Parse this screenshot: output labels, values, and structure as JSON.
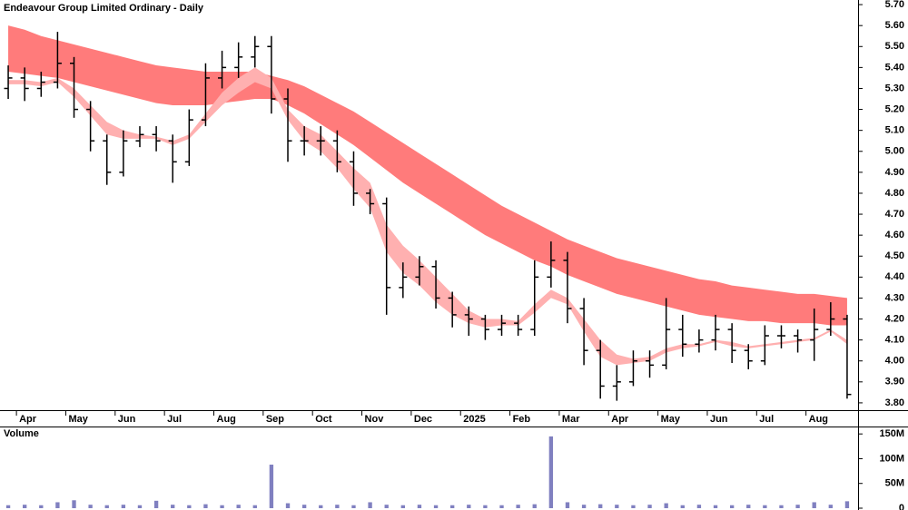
{
  "chart_data": [
    {
      "type": "ohlc",
      "title": "Endeavour Group Limited Ordinary - Daily",
      "color": "#000000",
      "categories": [
        null,
        "Apr",
        null,
        null,
        "May",
        null,
        null,
        "Jun",
        null,
        null,
        "Jul",
        null,
        null,
        "Aug",
        null,
        null,
        "Sep",
        null,
        null,
        "Oct",
        null,
        null,
        "Nov",
        null,
        null,
        "Dec",
        null,
        null,
        "2025",
        null,
        null,
        "Feb",
        null,
        null,
        "Mar",
        null,
        null,
        "Apr",
        null,
        null,
        "May",
        null,
        null,
        "Jun",
        null,
        null,
        "Jul",
        null,
        null,
        "Aug",
        null,
        null
      ],
      "open": [
        5.3,
        5.35,
        5.3,
        5.33,
        5.42,
        5.2,
        5.05,
        4.9,
        5.05,
        5.08,
        5.05,
        4.95,
        5.15,
        5.35,
        5.4,
        5.45,
        5.5,
        5.25,
        5.05,
        5.05,
        5.05,
        4.95,
        4.8,
        4.75,
        4.35,
        4.4,
        4.45,
        4.3,
        4.22,
        4.2,
        4.15,
        4.18,
        4.15,
        4.4,
        4.48,
        4.25,
        4.05,
        3.88,
        3.9,
        4.0,
        3.98,
        4.15,
        4.08,
        4.1,
        4.15,
        4.05,
        4.0,
        4.12,
        4.12,
        4.1,
        4.15,
        4.2
      ],
      "high": [
        5.41,
        5.4,
        5.38,
        5.57,
        5.45,
        5.24,
        5.08,
        5.1,
        5.12,
        5.12,
        5.08,
        5.2,
        5.42,
        5.48,
        5.52,
        5.55,
        5.55,
        5.3,
        5.12,
        5.12,
        5.1,
        5.0,
        4.82,
        4.78,
        4.47,
        4.5,
        4.48,
        4.33,
        4.26,
        4.22,
        4.22,
        4.22,
        4.48,
        4.57,
        4.52,
        4.3,
        4.1,
        3.98,
        4.05,
        4.05,
        4.3,
        4.22,
        4.15,
        4.22,
        4.18,
        4.08,
        4.17,
        4.17,
        4.15,
        4.25,
        4.28,
        4.22
      ],
      "low": [
        5.25,
        5.24,
        5.26,
        5.3,
        5.16,
        5.0,
        4.84,
        4.88,
        5.02,
        5.0,
        4.85,
        4.93,
        5.12,
        5.3,
        5.35,
        5.4,
        5.18,
        4.95,
        4.98,
        4.98,
        4.9,
        4.74,
        4.7,
        4.22,
        4.3,
        4.36,
        4.25,
        4.16,
        4.12,
        4.1,
        4.12,
        4.12,
        4.12,
        4.35,
        4.18,
        3.98,
        3.82,
        3.81,
        3.88,
        3.92,
        3.96,
        4.02,
        4.04,
        4.05,
        3.99,
        3.96,
        3.98,
        4.06,
        4.04,
        4.0,
        4.12,
        3.82
      ],
      "close": [
        5.35,
        5.3,
        5.33,
        5.42,
        5.2,
        5.05,
        4.9,
        5.05,
        5.08,
        5.05,
        4.95,
        5.15,
        5.35,
        5.4,
        5.45,
        5.5,
        5.25,
        5.05,
        5.05,
        5.05,
        4.95,
        4.8,
        4.75,
        4.35,
        4.4,
        4.45,
        4.3,
        4.22,
        4.2,
        4.15,
        4.18,
        4.15,
        4.4,
        4.48,
        4.25,
        4.05,
        3.88,
        3.9,
        4.0,
        3.98,
        4.15,
        4.08,
        4.1,
        4.15,
        4.05,
        4.0,
        4.12,
        4.12,
        4.1,
        4.15,
        4.2,
        3.84
      ],
      "bands": [
        {
          "color": "#ff7b7b",
          "upper": [
            5.6,
            5.58,
            5.55,
            5.53,
            5.51,
            5.49,
            5.47,
            5.45,
            5.43,
            5.41,
            5.4,
            5.39,
            5.38,
            5.38,
            5.38,
            5.38,
            5.36,
            5.34,
            5.31,
            5.27,
            5.23,
            5.19,
            5.14,
            5.09,
            5.04,
            4.99,
            4.94,
            4.89,
            4.84,
            4.79,
            4.74,
            4.7,
            4.66,
            4.62,
            4.58,
            4.55,
            4.52,
            4.49,
            4.47,
            4.45,
            4.43,
            4.41,
            4.39,
            4.38,
            4.36,
            4.35,
            4.34,
            4.33,
            4.32,
            4.32,
            4.31,
            4.3
          ],
          "lower": [
            5.38,
            5.37,
            5.36,
            5.35,
            5.33,
            5.31,
            5.29,
            5.27,
            5.25,
            5.23,
            5.22,
            5.22,
            5.22,
            5.23,
            5.24,
            5.25,
            5.25,
            5.22,
            5.18,
            5.13,
            5.08,
            5.03,
            4.97,
            4.91,
            4.85,
            4.8,
            4.75,
            4.7,
            4.65,
            4.6,
            4.56,
            4.52,
            4.48,
            4.45,
            4.41,
            4.38,
            4.35,
            4.32,
            4.3,
            4.28,
            4.26,
            4.24,
            4.22,
            4.21,
            4.2,
            4.19,
            4.19,
            4.18,
            4.18,
            4.18,
            4.17,
            4.17
          ]
        },
        {
          "color": "#ffb0b0",
          "upper": [
            5.34,
            5.34,
            5.33,
            5.35,
            5.3,
            5.22,
            5.14,
            5.1,
            5.08,
            5.07,
            5.05,
            5.08,
            5.18,
            5.28,
            5.35,
            5.4,
            5.35,
            5.2,
            5.12,
            5.08,
            5.0,
            4.92,
            4.85,
            4.65,
            4.55,
            4.48,
            4.4,
            4.32,
            4.24,
            4.2,
            4.2,
            4.19,
            4.27,
            4.34,
            4.3,
            4.2,
            4.1,
            4.03,
            4.01,
            4.02,
            4.06,
            4.08,
            4.08,
            4.1,
            4.09,
            4.07,
            4.08,
            4.09,
            4.1,
            4.11,
            4.15,
            4.1
          ],
          "lower": [
            5.32,
            5.32,
            5.31,
            5.33,
            5.26,
            5.17,
            5.08,
            5.06,
            5.06,
            5.06,
            5.03,
            5.06,
            5.14,
            5.22,
            5.28,
            5.33,
            5.3,
            5.15,
            5.05,
            5.0,
            4.92,
            4.82,
            4.73,
            4.52,
            4.42,
            4.36,
            4.28,
            4.22,
            4.18,
            4.16,
            4.17,
            4.17,
            4.23,
            4.3,
            4.27,
            4.14,
            4.02,
            3.98,
            3.99,
            4.0,
            4.04,
            4.06,
            4.07,
            4.09,
            4.07,
            4.06,
            4.07,
            4.08,
            4.09,
            4.1,
            4.14,
            4.08
          ]
        }
      ],
      "ylim": [
        3.765,
        5.722
      ],
      "yticks": [
        {
          "value": 3.8,
          "label": "3.80"
        },
        {
          "value": 3.9,
          "label": "3.90"
        },
        {
          "value": 4.0,
          "label": "4.00"
        },
        {
          "value": 4.1,
          "label": "4.10"
        },
        {
          "value": 4.2,
          "label": "4.20"
        },
        {
          "value": 4.3,
          "label": "4.30"
        },
        {
          "value": 4.4,
          "label": "4.40"
        },
        {
          "value": 4.5,
          "label": "4.50"
        },
        {
          "value": 4.6,
          "label": "4.60"
        },
        {
          "value": 4.7,
          "label": "4.70"
        },
        {
          "value": 4.8,
          "label": "4.80"
        },
        {
          "value": 4.9,
          "label": "4.90"
        },
        {
          "value": 5.0,
          "label": "5.00"
        },
        {
          "value": 5.1,
          "label": "5.10"
        },
        {
          "value": 5.2,
          "label": "5.20"
        },
        {
          "value": 5.3,
          "label": "5.30"
        },
        {
          "value": 5.4,
          "label": "5.40"
        },
        {
          "value": 5.5,
          "label": "5.50"
        },
        {
          "value": 5.6,
          "label": "5.60"
        },
        {
          "value": 5.7,
          "label": "5.70"
        }
      ]
    },
    {
      "type": "bar",
      "title": "Volume",
      "color": "#8080c0",
      "values": [
        6000000,
        7000000,
        6000000,
        12000000,
        16000000,
        7000000,
        6000000,
        7000000,
        6000000,
        15000000,
        7000000,
        6000000,
        8000000,
        6000000,
        7000000,
        6000000,
        88000000,
        10000000,
        7000000,
        6000000,
        7000000,
        6000000,
        12000000,
        7000000,
        6000000,
        7000000,
        6000000,
        6000000,
        7000000,
        6000000,
        6000000,
        7000000,
        8000000,
        145000000,
        12000000,
        7000000,
        8000000,
        7000000,
        6000000,
        7000000,
        10000000,
        6000000,
        7000000,
        6000000,
        6000000,
        7000000,
        6000000,
        6000000,
        7000000,
        12000000,
        7000000,
        14000000
      ],
      "ylim": [
        0,
        165000000
      ],
      "yticks": [
        0,
        {
          "value": 50000000,
          "label": "50M"
        },
        {
          "value": 100000000,
          "label": "100M"
        },
        {
          "value": 150000000,
          "label": "150M"
        }
      ]
    }
  ]
}
